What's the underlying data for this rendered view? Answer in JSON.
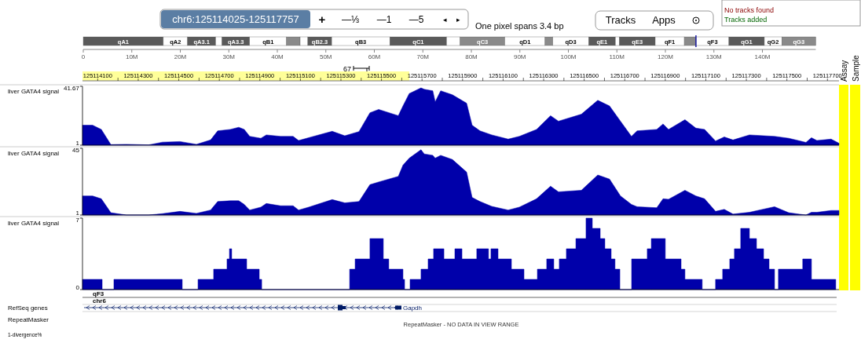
{
  "chart_data": [
    {
      "type": "other",
      "annotations": [
        "chr6:125114025-125117757",
        "+",
        "—⅓",
        "—1",
        "—5",
        "◂",
        "▸",
        "One pixel spans 3.4 bp",
        "Tracks",
        "Apps",
        "No tracks found",
        "Tracks added",
        "67",
        "Assay",
        "Sample",
        "qF3",
        "chr6",
        "RefSeq genes",
        "Gapdh",
        "RepeatMasker",
        "RepeatMasker - NO DATA IN VIEW RANGE",
        "1-divergence%"
      ]
    },
    {
      "type": "bar",
      "orientation": "horizontal",
      "stacked": true,
      "categories": [
        null
      ],
      "xlim": [
        0,
        151
      ],
      "tick_labels": "x",
      "xticks": [
        0,
        {
          "value": 10,
          "label": "10M"
        },
        {
          "value": 20,
          "label": "20M"
        },
        {
          "value": 30,
          "label": "30M"
        },
        {
          "value": 40,
          "label": "40M"
        },
        {
          "value": 50,
          "label": "50M"
        },
        {
          "value": 60,
          "label": "60M"
        },
        {
          "value": 70,
          "label": "70M"
        },
        {
          "value": 80,
          "label": "80M"
        },
        {
          "value": 90,
          "label": "90M"
        },
        {
          "value": 100,
          "label": "100M"
        },
        {
          "value": 110,
          "label": "110M"
        },
        {
          "value": 120,
          "label": "120M"
        },
        {
          "value": 130,
          "label": "130M"
        },
        {
          "value": 140,
          "label": "140M"
        }
      ],
      "ref_lines": [
        {
          "axis": "x",
          "value": 126.3,
          "color": "#1a1aa0"
        }
      ],
      "series": [
        {
          "name": "qA1",
          "color": "#5a5a5a",
          "values": [
            16.5
          ]
        },
        {
          "name": "qA2",
          "color": "#ffffff",
          "values": [
            5.0
          ]
        },
        {
          "name": "qA3.1",
          "color": "#5a5a5a",
          "values": [
            5.8
          ]
        },
        {
          "color": "#ffffff",
          "values": [
            1.3
          ]
        },
        {
          "name": "qA3.3",
          "color": "#5a5a5a",
          "values": [
            5.7
          ]
        },
        {
          "name": "qB1",
          "color": "#ffffff",
          "values": [
            7.6
          ]
        },
        {
          "color": "#8a8a8a",
          "values": [
            2.8
          ]
        },
        {
          "color": "#ffffff",
          "values": [
            1.6
          ]
        },
        {
          "name": "qB2.3",
          "color": "#5a5a5a",
          "values": [
            4.9
          ]
        },
        {
          "name": "qB3",
          "color": "#ffffff",
          "values": [
            12.0
          ]
        },
        {
          "name": "qC1",
          "color": "#5a5a5a",
          "values": [
            11.7
          ]
        },
        {
          "color": "#ffffff",
          "values": [
            2.8
          ]
        },
        {
          "name": "qC3",
          "color": "#8a8a8a",
          "values": [
            9.2
          ]
        },
        {
          "name": "qD1",
          "color": "#ffffff",
          "values": [
            8.3
          ]
        },
        {
          "color": "#8a8a8a",
          "values": [
            1.6
          ]
        },
        {
          "name": "qD3",
          "color": "#ffffff",
          "values": [
            7.4
          ]
        },
        {
          "name": "qE1",
          "color": "#5a5a5a",
          "values": [
            5.5
          ]
        },
        {
          "color": "#ffffff",
          "values": [
            0.8
          ]
        },
        {
          "name": "qE3",
          "color": "#5a5a5a",
          "values": [
            7.4
          ]
        },
        {
          "name": "qF1",
          "color": "#ffffff",
          "values": [
            6.0
          ]
        },
        {
          "color": "#8a8a8a",
          "values": [
            2.4
          ]
        },
        {
          "name": "qF3",
          "color": "#ffffff",
          "values": [
            6.8
          ]
        },
        {
          "name": "qG1",
          "color": "#5a5a5a",
          "values": [
            7.3
          ]
        },
        {
          "name": "qG2",
          "color": "#ffffff",
          "values": [
            3.6
          ]
        },
        {
          "name": "qG3",
          "color": "#8a8a8a",
          "values": [
            7.0
          ]
        }
      ]
    },
    {
      "type": "area",
      "ylabel": "liver GATA4 signal",
      "color": "#0000aa",
      "xlim": [
        125114025,
        125117757
      ],
      "ylim": [
        1,
        41.67
      ],
      "yticks": [
        1,
        41.67
      ],
      "xticks": [
        {
          "value": 125114100,
          "label": "125114100"
        },
        {
          "value": 125114200,
          "label": null
        },
        {
          "value": 125114300,
          "label": "125114300"
        },
        {
          "value": 125114400,
          "label": null
        },
        {
          "value": 125114500,
          "label": "125114500"
        },
        {
          "value": 125114600,
          "label": null
        },
        {
          "value": 125114700,
          "label": "125114700"
        },
        {
          "value": 125114800,
          "label": null
        },
        {
          "value": 125114900,
          "label": "125114900"
        },
        {
          "value": 125115000,
          "label": null
        },
        {
          "value": 125115100,
          "label": "125115100"
        },
        {
          "value": 125115200,
          "label": null
        },
        {
          "value": 125115300,
          "label": "125115300"
        },
        {
          "value": 125115400,
          "label": null
        },
        {
          "value": 125115500,
          "label": "125115500"
        },
        {
          "value": 125115600,
          "label": null
        },
        {
          "value": 125115700,
          "label": "125115700"
        },
        {
          "value": 125115800,
          "label": null
        },
        {
          "value": 125115900,
          "label": "125115900"
        },
        {
          "value": 125116000,
          "label": null
        },
        {
          "value": 125116100,
          "label": "125116100"
        },
        {
          "value": 125116200,
          "label": null
        },
        {
          "value": 125116300,
          "label": "125116300"
        },
        {
          "value": 125116400,
          "label": null
        },
        {
          "value": 125116500,
          "label": "125116500"
        },
        {
          "value": 125116600,
          "label": null
        },
        {
          "value": 125116700,
          "label": "125116700"
        },
        {
          "value": 125116800,
          "label": null
        },
        {
          "value": 125116900,
          "label": "125116900"
        },
        {
          "value": 125117000,
          "label": null
        },
        {
          "value": 125117100,
          "label": "125117100"
        },
        {
          "value": 125117200,
          "label": null
        },
        {
          "value": 125117300,
          "label": "125117300"
        },
        {
          "value": 125117400,
          "label": null
        },
        {
          "value": 125117500,
          "label": "125117500"
        },
        {
          "value": 125117600,
          "label": null
        },
        {
          "value": 125117700,
          "label": "125117700"
        }
      ],
      "x": [
        125114025,
        125114075,
        125114118,
        125114165,
        125114242,
        125114351,
        125114420,
        125114506,
        125114587,
        125114657,
        125114692,
        125114754,
        125114796,
        125114823,
        125114850,
        125114905,
        125114932,
        125115002,
        125115064,
        125115091,
        125115141,
        125115257,
        125115319,
        125115389,
        125115443,
        125115486,
        125115583,
        125115606,
        125115637,
        125115695,
        125115711,
        125115753,
        125115765,
        125115792,
        125115850,
        125115920,
        125115947,
        125115986,
        125116044,
        125116125,
        125116180,
        125116265,
        125116334,
        125116373,
        125116486,
        125116567,
        125116625,
        125116679,
        125116733,
        125116761,
        125116858,
        125116889,
        125116916,
        125116997,
        125117051,
        125117094,
        125117148,
        125117191,
        125117234,
        125117315,
        125117439,
        125117509,
        125117594,
        125117621,
        125117648,
        125117718,
        125117757
      ],
      "values": [
        14.8,
        14.8,
        11.9,
        1.4,
        1.6,
        1.2,
        3.1,
        3.5,
        1.6,
        4.6,
        10.9,
        11.9,
        13.4,
        11.9,
        7.1,
        5.8,
        8.1,
        7.1,
        7.1,
        4.2,
        6.2,
        10.6,
        7.5,
        10.4,
        23.4,
        25.7,
        21.4,
        28.1,
        36.7,
        40.6,
        39.6,
        38.6,
        31,
        38.6,
        35.8,
        30,
        14.8,
        10.9,
        8.1,
        5.2,
        7.1,
        11.9,
        21.4,
        17.6,
        22.4,
        32,
        28.1,
        17.6,
        7.1,
        10.9,
        11.9,
        15.7,
        11.9,
        18.6,
        12.8,
        11.9,
        3.9,
        6.7,
        4.6,
        8.1,
        7.1,
        5.8,
        2.9,
        6.2,
        4.2,
        5.2,
        2.3
      ]
    },
    {
      "type": "area",
      "ylabel": "liver GATA4 signal",
      "color": "#0000aa",
      "xlim": [
        125114025,
        125117757
      ],
      "ylim": [
        1,
        45
      ],
      "yticks": [
        1,
        45
      ],
      "tick_labels": "y",
      "x": [
        125114025,
        125114075,
        125114118,
        125114165,
        125114242,
        125114351,
        125114420,
        125114506,
        125114587,
        125114657,
        125114692,
        125114754,
        125114796,
        125114823,
        125114850,
        125114905,
        125114932,
        125115002,
        125115064,
        125115091,
        125115141,
        125115257,
        125115319,
        125115389,
        125115443,
        125115486,
        125115583,
        125115606,
        125115637,
        125115695,
        125115711,
        125115753,
        125115765,
        125115792,
        125115850,
        125115920,
        125115947,
        125115986,
        125116044,
        125116125,
        125116180,
        125116265,
        125116334,
        125116373,
        125116486,
        125116567,
        125116625,
        125116679,
        125116733,
        125116761,
        125116858,
        125116889,
        125116916,
        125116997,
        125117051,
        125117094,
        125117148,
        125117191,
        125117234,
        125117315,
        125117439,
        125117509,
        125117594,
        125117621,
        125117648,
        125117718,
        125117757
      ],
      "values": [
        13.6,
        13.6,
        11.7,
        2.5,
        1,
        1,
        1.9,
        3.4,
        2.1,
        4.3,
        9.9,
        10.4,
        10.4,
        8,
        4.3,
        6.2,
        8.6,
        7.1,
        7.1,
        4.3,
        6.2,
        11.2,
        9,
        9.9,
        21,
        22.8,
        26.5,
        33.9,
        38.5,
        44.1,
        41.3,
        40.4,
        38.5,
        40.4,
        37.6,
        29.3,
        12.6,
        9.9,
        6.7,
        4.3,
        6.2,
        11.7,
        20,
        16.3,
        17.3,
        27.4,
        24.7,
        13.6,
        8,
        6.5,
        5.8,
        11.7,
        11.4,
        17.3,
        13.6,
        11.7,
        3.4,
        4.7,
        1.6,
        2.8,
        6.5,
        2.5,
        1,
        2.8,
        2.8,
        4,
        4
      ]
    },
    {
      "type": "area",
      "ylabel": "liver GATA4 signal",
      "color": "#0000aa",
      "xlim": [
        125114025,
        125117757
      ],
      "ylim": [
        0,
        7
      ],
      "yticks": [
        0,
        7
      ],
      "tick_labels": "y",
      "x": [
        125114025,
        125114122,
        125114122,
        125114180,
        125114180,
        125114517,
        125114517,
        125114595,
        125114595,
        125114672,
        125114672,
        125114738,
        125114738,
        125114750,
        125114750,
        125114761,
        125114761,
        125114835,
        125114835,
        125114897,
        125114897,
        125114909,
        125114909,
        125115343,
        125115343,
        125115370,
        125115370,
        125115443,
        125115443,
        125115509,
        125115509,
        125115536,
        125115536,
        125115606,
        125115606,
        125115614,
        125115614,
        125115641,
        125115641,
        125115695,
        125115695,
        125115730,
        125115730,
        125115757,
        125115757,
        125115808,
        125115808,
        125115862,
        125115862,
        125115897,
        125115897,
        125115970,
        125115970,
        125116028,
        125116028,
        125116040,
        125116040,
        125116075,
        125116075,
        125116141,
        125116141,
        125116203,
        125116203,
        125116269,
        125116269,
        125116315,
        125116315,
        125116350,
        125116350,
        125116377,
        125116377,
        125116412,
        125116412,
        125116459,
        125116459,
        125116509,
        125116509,
        125116540,
        125116540,
        125116579,
        125116579,
        125116602,
        125116602,
        125116633,
        125116633,
        125116652,
        125116652,
        125116676,
        125116676,
        125116734,
        125116734,
        125116811,
        125116811,
        125116831,
        125116831,
        125116900,
        125116900,
        125116978,
        125116978,
        125116997,
        125116997,
        125117082,
        125117082,
        125117148,
        125117148,
        125117183,
        125117183,
        125117218,
        125117218,
        125117241,
        125117241,
        125117272,
        125117272,
        125117315,
        125117315,
        125117350,
        125117350,
        125117385,
        125117385,
        125117412,
        125117412,
        125117439,
        125117439,
        125117458,
        125117458,
        125117578,
        125117578,
        125117621,
        125117621,
        125117741
      ],
      "values": [
        1,
        1,
        0,
        0,
        1,
        1,
        0,
        0,
        1,
        1,
        2,
        2,
        3,
        3,
        4,
        4,
        3,
        3,
        2,
        2,
        1,
        1,
        0,
        0,
        2,
        2,
        3,
        3,
        5,
        5,
        3,
        3,
        2,
        2,
        1,
        1,
        0,
        0,
        1,
        1,
        2,
        2,
        3,
        3,
        4,
        4,
        3,
        3,
        4,
        4,
        3,
        3,
        4,
        4,
        3,
        3,
        4,
        4,
        3,
        3,
        2,
        2,
        1,
        1,
        2,
        2,
        3,
        3,
        2,
        2,
        3,
        3,
        4,
        4,
        5,
        5,
        7,
        7,
        6,
        6,
        5,
        5,
        4,
        4,
        3,
        3,
        2,
        2,
        0,
        0,
        3,
        3,
        4,
        4,
        5,
        5,
        3,
        3,
        2,
        2,
        1,
        1,
        0,
        0,
        1,
        1,
        2,
        2,
        3,
        3,
        4,
        4,
        6,
        6,
        5,
        5,
        4,
        4,
        3,
        3,
        2,
        2,
        0,
        0,
        2,
        2,
        3,
        3,
        1,
        1
      ]
    }
  ]
}
